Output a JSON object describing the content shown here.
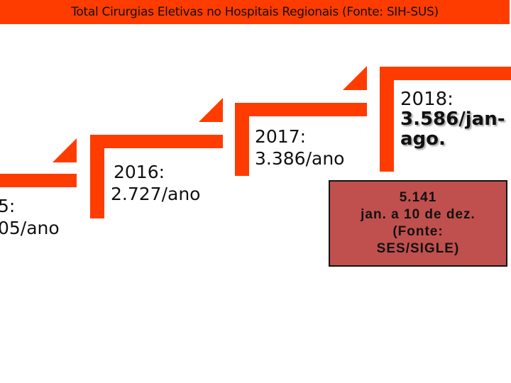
{
  "header": {
    "title": "Total Cirurgias Eletivas no Hospitais Regionais (Fonte: SIH-SUS)"
  },
  "colors": {
    "accent": "#ff3c00",
    "callout": "#c0504d"
  },
  "steps": [
    {
      "year": "5:",
      "value": "05/ano"
    },
    {
      "year": "2016:",
      "value": "2.727/ano"
    },
    {
      "year": "2017:",
      "value": "3.386/ano"
    },
    {
      "year": "2018:",
      "value_line1": "3.586/jan-",
      "value_line2": "ago."
    }
  ],
  "callout": {
    "line1": "5.141",
    "line2": "jan. a 10 de dez.",
    "line3": "(Fonte:",
    "line4": "SES/SIGLE)"
  }
}
